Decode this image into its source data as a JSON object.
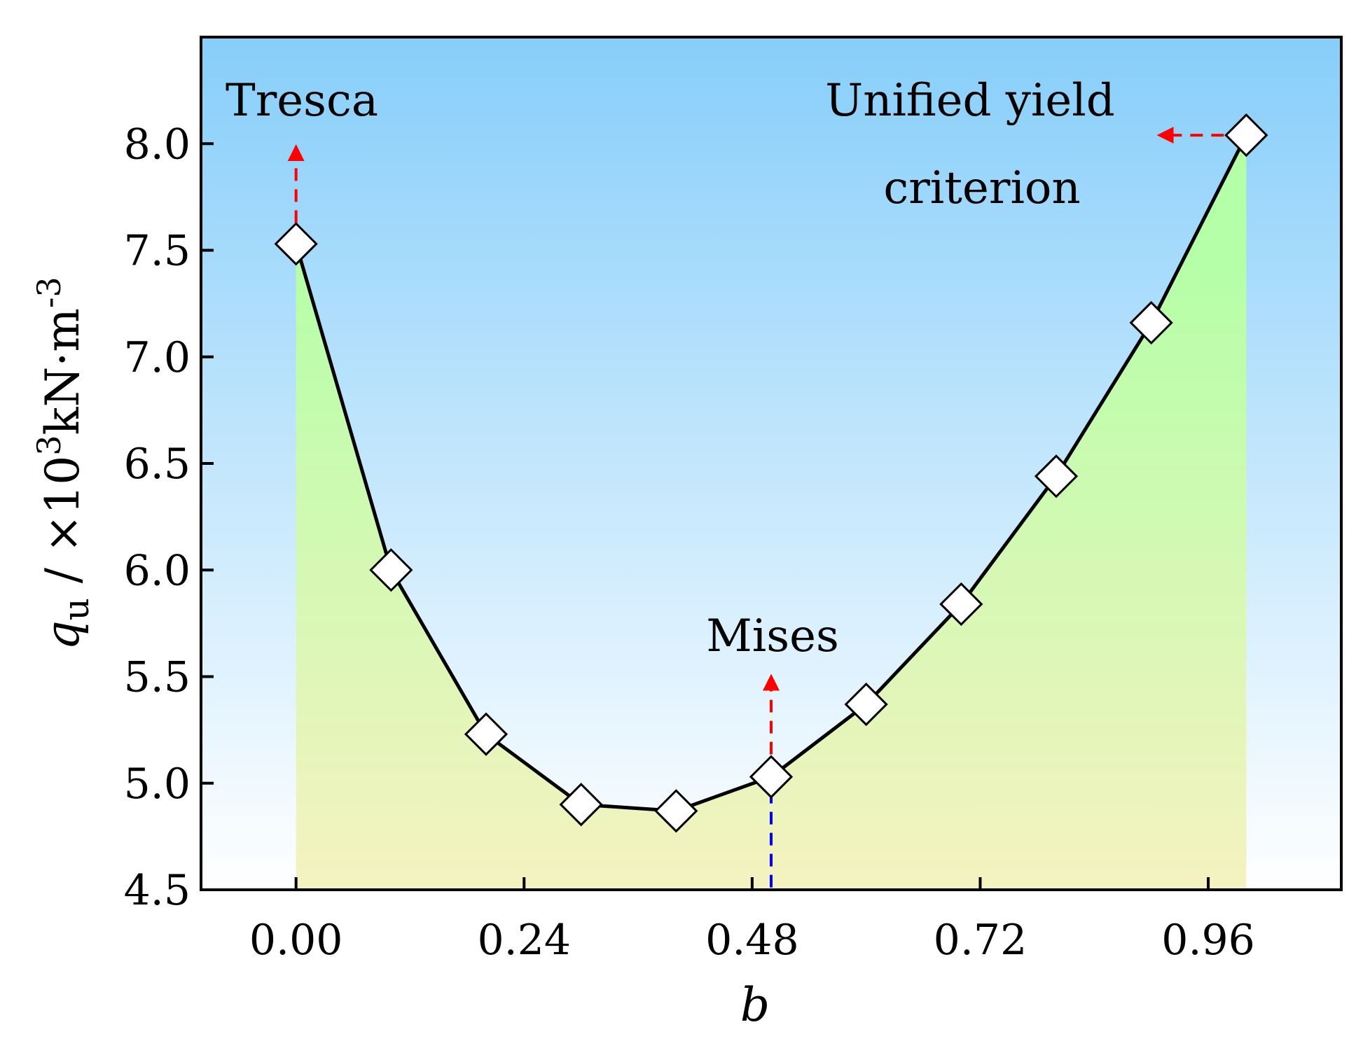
{
  "chart_data": {
    "type": "line",
    "title": "",
    "xlabel": "b",
    "ylabel": {
      "symbol": "q",
      "subscript": "u",
      "unit_prefix": " / ×10",
      "unit_exp": "3",
      "unit_main": "kN·m",
      "unit_exp2": "-3"
    },
    "xlim": [
      -0.1,
      1.1
    ],
    "ylim": [
      4.5,
      8.5
    ],
    "xticks": [
      0.0,
      0.24,
      0.48,
      0.72,
      0.96
    ],
    "xtick_labels": [
      "0.00",
      "0.24",
      "0.48",
      "0.72",
      "0.96"
    ],
    "yticks": [
      4.5,
      5.0,
      5.5,
      6.0,
      6.5,
      7.0,
      7.5,
      8.0
    ],
    "ytick_labels": [
      "4.5",
      "5.0",
      "5.5",
      "6.0",
      "6.5",
      "7.0",
      "7.5",
      "8.0"
    ],
    "series": [
      {
        "name": "q_u",
        "marker": "diamond",
        "x": [
          0.0,
          0.1,
          0.2,
          0.3,
          0.4,
          0.5,
          0.6,
          0.7,
          0.8,
          0.9,
          1.0
        ],
        "y": [
          7.53,
          6.0,
          5.23,
          4.9,
          4.87,
          5.03,
          5.37,
          5.84,
          6.44,
          7.16,
          8.04
        ]
      }
    ],
    "annotations": {
      "tresca": "Tresca",
      "mises": "Mises",
      "unified_line1": "Unified yield",
      "unified_line2": "criterion"
    },
    "colors": {
      "background_top": "#87cefa",
      "background_bottom": "#ffffff",
      "fill_top": "#b4ffa8",
      "fill_bottom": "#f5f2c0",
      "line": "#000000",
      "arrow": "#ff0000",
      "mises_guide": "#0000ff"
    }
  }
}
